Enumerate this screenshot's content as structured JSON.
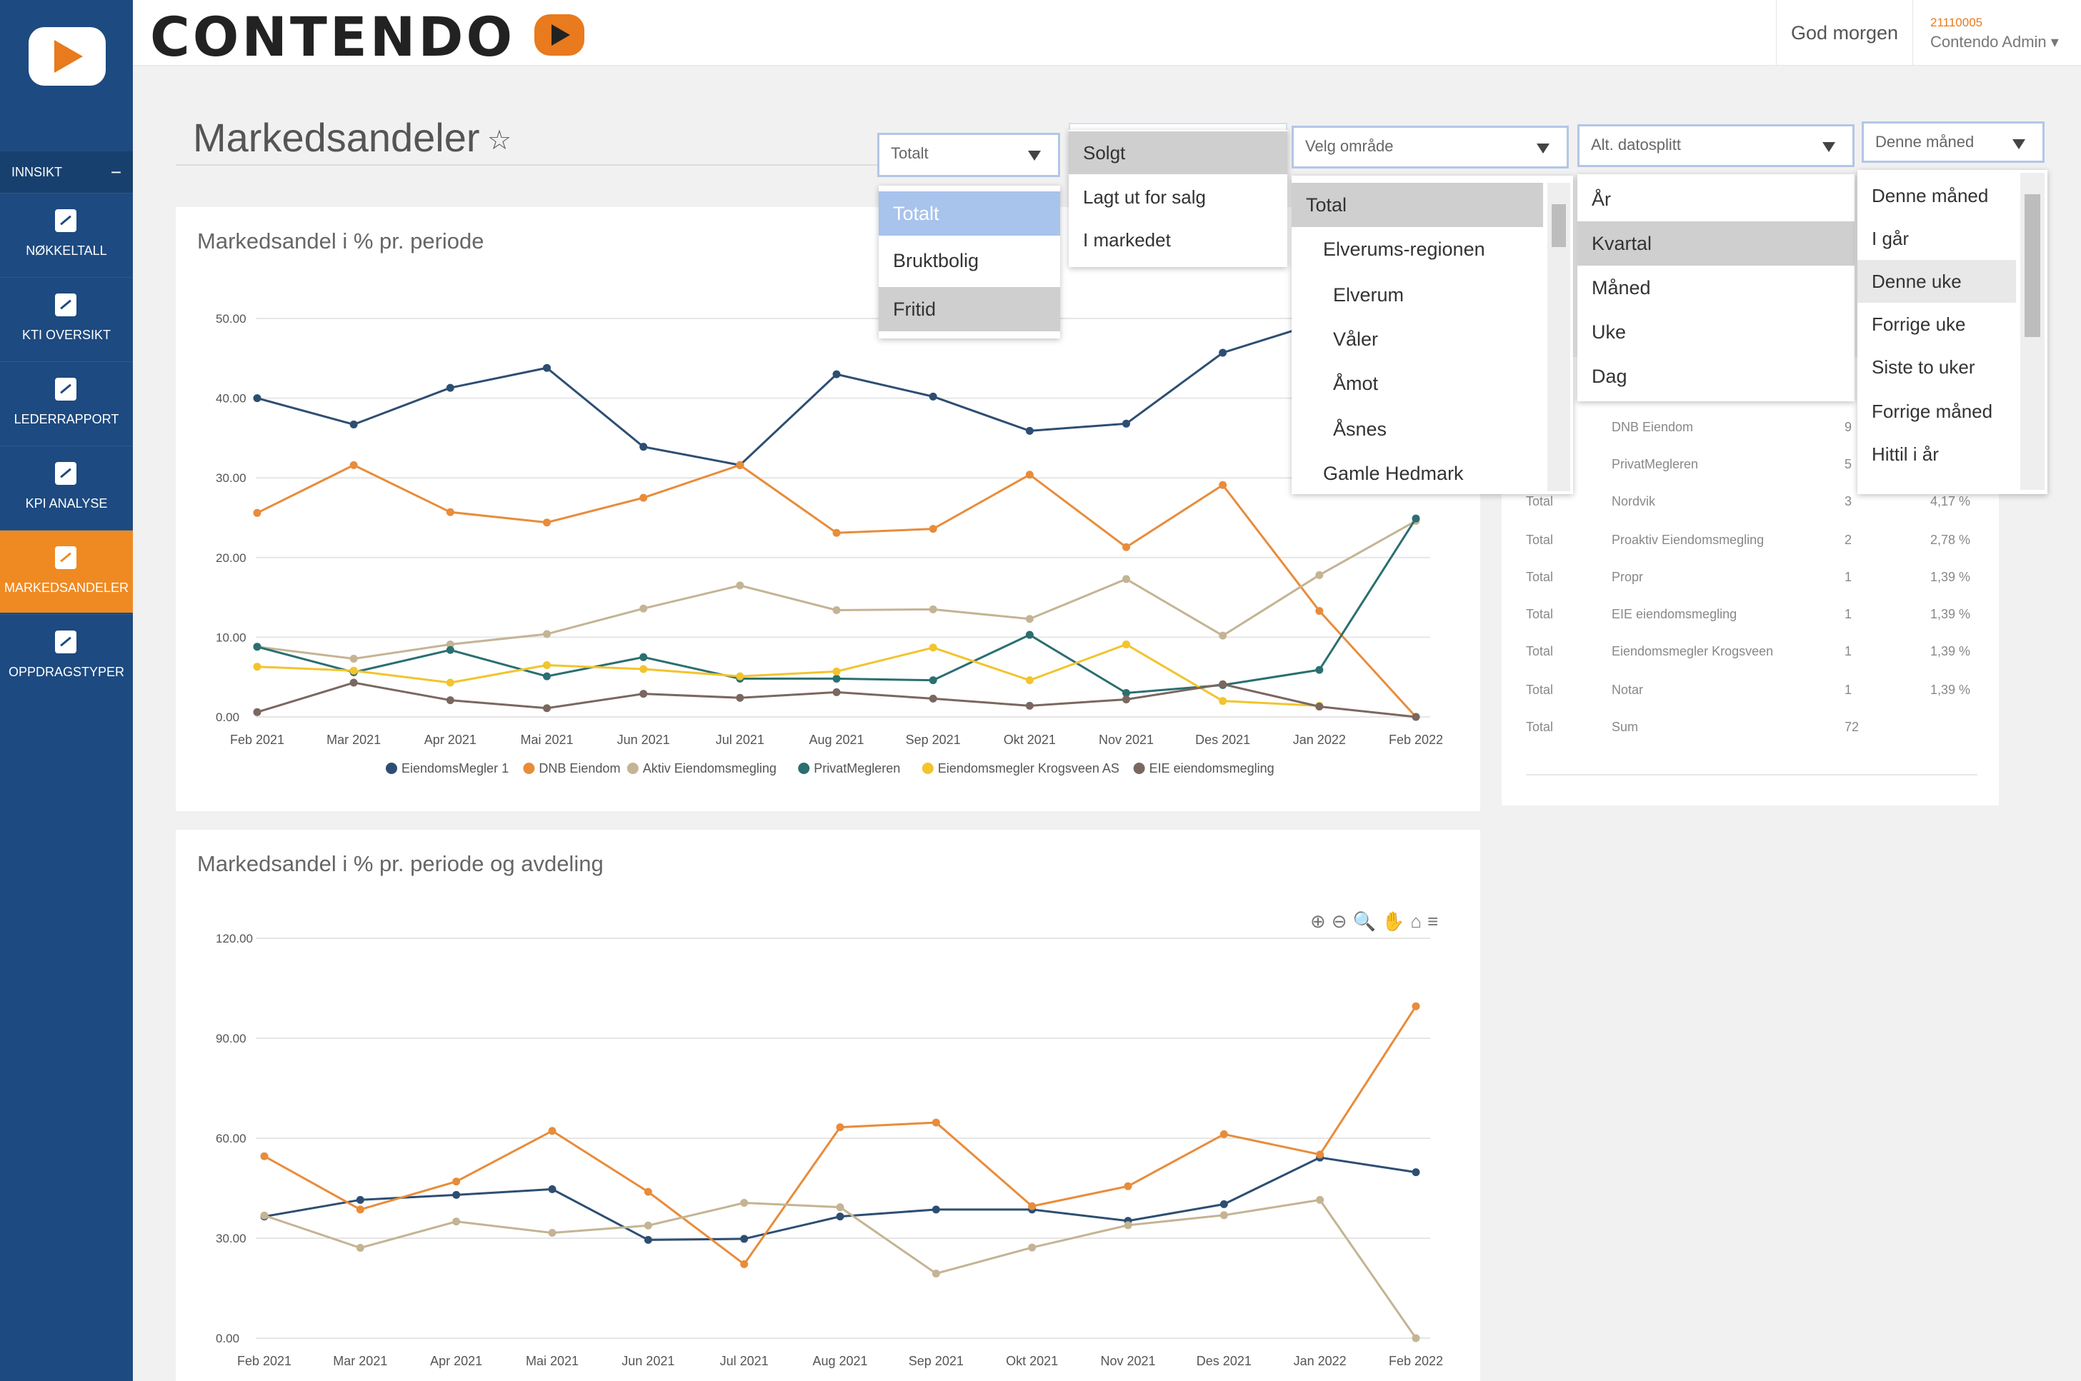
{
  "header": {
    "logo": "CONTENDO",
    "greeting": "God morgen",
    "user_id": "21110005",
    "user_name": "Contendo Admin ▾"
  },
  "sidebar": {
    "section": "INNSIKT",
    "section_toggle": "−",
    "items": [
      {
        "label": "NØKKELTALL",
        "icon": "chart-icon"
      },
      {
        "label": "KTI OVERSIKT",
        "icon": "clipboard-icon"
      },
      {
        "label": "LEDERRAPPORT",
        "icon": "chart-icon"
      },
      {
        "label": "KPI ANALYSE",
        "icon": "chart-icon"
      },
      {
        "label": "MARKEDSANDELER",
        "icon": "chart-icon"
      },
      {
        "label": "OPPDRAGSTYPER",
        "icon": "clipboard-icon"
      }
    ],
    "active_color": "#ef8a22"
  },
  "page": {
    "title": "Markedsandeler",
    "star": "☆"
  },
  "filters": {
    "type": {
      "value": "Totalt",
      "options": [
        "Totalt",
        "Bruktbolig",
        "Fritid"
      ]
    },
    "status": {
      "options": [
        "Solgt",
        "Lagt ut for salg",
        "I markedet"
      ]
    },
    "area": {
      "placeholder": "Velg område",
      "options": [
        "Total",
        "Elverums-regionen",
        "Elverum",
        "Våler",
        "Åmot",
        "Åsnes",
        "Gamle Hedmark"
      ]
    },
    "split": {
      "placeholder": "Alt. datosplitt",
      "options": [
        "År",
        "Kvartal",
        "Måned",
        "Uke",
        "Dag"
      ]
    },
    "period": {
      "value": "Denne måned",
      "options": [
        "Denne måned",
        "I går",
        "Denne uke",
        "Forrige uke",
        "Siste to uker",
        "Forrige måned",
        "Hittil i år"
      ]
    }
  },
  "chart1": {
    "title": "Markedsandel i % pr. periode"
  },
  "chart2": {
    "title": "Markedsandel i % pr. periode og avdeling",
    "tools": "⊕⊖🔍✋⌂≡"
  },
  "table": {
    "rows": [
      {
        "a": "",
        "b": "DNB Eiendom",
        "c": "9",
        "d": ""
      },
      {
        "a": "",
        "b": "PrivatMegleren",
        "c": "5",
        "d": ""
      },
      {
        "a": "Total",
        "b": "Nordvik",
        "c": "3",
        "d": "4,17 %"
      },
      {
        "a": "Total",
        "b": "Proaktiv Eiendomsmegling",
        "c": "2",
        "d": "2,78 %"
      },
      {
        "a": "Total",
        "b": "Propr",
        "c": "1",
        "d": "1,39 %"
      },
      {
        "a": "Total",
        "b": "EIE eiendomsmegling",
        "c": "1",
        "d": "1,39 %"
      },
      {
        "a": "Total",
        "b": "Eiendomsmegler Krogsveen",
        "c": "1",
        "d": "1,39 %"
      },
      {
        "a": "Total",
        "b": "Notar",
        "c": "1",
        "d": "1,39 %"
      },
      {
        "a": "Total",
        "b": "Sum",
        "c": "72",
        "d": ""
      }
    ]
  },
  "chart_data": [
    {
      "type": "line",
      "title": "Markedsandel i % pr. periode",
      "categories": [
        "Feb 2021",
        "Mar 2021",
        "Apr 2021",
        "Mai 2021",
        "Jun 2021",
        "Jul 2021",
        "Aug 2021",
        "Sep 2021",
        "Okt 2021",
        "Nov 2021",
        "Des 2021",
        "Jan 2022",
        "Feb 2022"
      ],
      "ylim": [
        0,
        50
      ],
      "yticks": [
        "0.00",
        "10.00",
        "20.00",
        "30.00",
        "40.00",
        "50.00"
      ],
      "grid": true,
      "legend": "bottom",
      "series": [
        {
          "name": "EiendomsMegler 1",
          "color": "#2d4e72",
          "values": [
            40,
            36.7,
            41.3,
            43.8,
            33.9,
            31.6,
            43,
            40.2,
            35.9,
            36.8,
            45.7,
            49.5,
            null
          ]
        },
        {
          "name": "DNB Eiendom",
          "color": "#e88c3a",
          "values": [
            25.6,
            31.6,
            25.7,
            24.4,
            27.5,
            31.6,
            23.1,
            23.6,
            30.4,
            21.3,
            29.1,
            13.3,
            0
          ]
        },
        {
          "name": "Aktiv Eiendomsmegling",
          "color": "#c4b494",
          "values": [
            8.8,
            7.3,
            9.1,
            10.4,
            13.6,
            16.5,
            13.4,
            13.5,
            12.3,
            17.3,
            10.2,
            17.8,
            24.6
          ]
        },
        {
          "name": "PrivatMegleren",
          "color": "#2b6f70",
          "values": [
            8.8,
            5.6,
            8.4,
            5.1,
            7.5,
            4.8,
            4.8,
            4.6,
            10.3,
            3,
            4,
            5.9,
            24.9
          ]
        },
        {
          "name": "Eiendomsmegler Krogsveen AS",
          "color": "#f2c42d",
          "values": [
            6.3,
            5.8,
            4.3,
            6.5,
            6,
            5.1,
            5.7,
            8.7,
            4.6,
            9.1,
            2,
            1.4,
            null
          ]
        },
        {
          "name": "EIE eiendomsmegling",
          "color": "#7a675f",
          "values": [
            0.6,
            4.3,
            2.1,
            1.1,
            2.9,
            2.4,
            3.1,
            2.3,
            1.4,
            2.2,
            4.1,
            1.3,
            0
          ]
        }
      ]
    },
    {
      "type": "line",
      "title": "Markedsandel i % pr. periode og avdeling",
      "categories": [
        "Feb 2021",
        "Mar 2021",
        "Apr 2021",
        "Mai 2021",
        "Jun 2021",
        "Jul 2021",
        "Aug 2021",
        "Sep 2021",
        "Okt 2021",
        "Nov 2021",
        "Des 2021",
        "Jan 2022",
        "Feb 2022"
      ],
      "ylim": [
        0,
        120
      ],
      "yticks": [
        "0.00",
        "30.00",
        "60.00",
        "90.00",
        "120.00"
      ],
      "grid": true,
      "series": [
        {
          "color": "#2d4e72",
          "values": [
            36.5,
            41.5,
            43,
            44.7,
            29.5,
            29.8,
            36.5,
            38.6,
            38.6,
            35.2,
            40.2,
            54.2,
            49.8
          ]
        },
        {
          "color": "#e88c3a",
          "values": [
            54.6,
            38.6,
            47,
            62.2,
            43.9,
            22.2,
            63.3,
            64.7,
            39.6,
            45.6,
            61.2,
            55.1,
            99.6
          ]
        },
        {
          "color": "#c4b494",
          "values": [
            36.8,
            27.1,
            35,
            31.6,
            33.8,
            40.6,
            39.3,
            19.4,
            27.2,
            33.9,
            36.9,
            41.5,
            0
          ]
        }
      ]
    }
  ]
}
